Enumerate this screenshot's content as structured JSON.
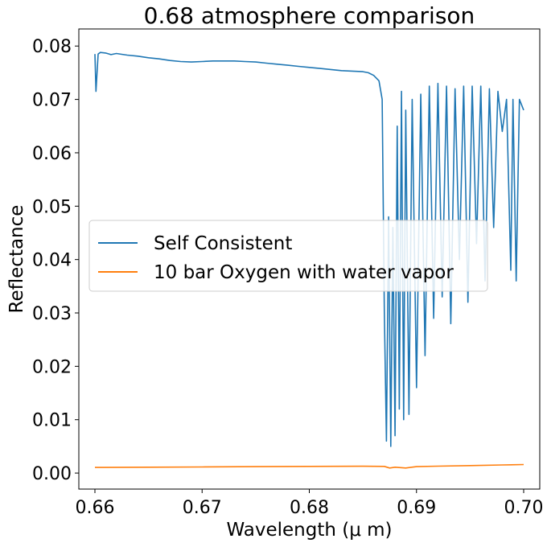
{
  "chart_data": {
    "type": "line",
    "title": "0.68 atmosphere comparison",
    "xlabel": "Wavelength (μ m)",
    "ylabel": "Reflectance",
    "xlim": [
      0.6585,
      0.7015
    ],
    "ylim": [
      -0.003,
      0.0832
    ],
    "xticks": [
      0.66,
      0.67,
      0.68,
      0.69,
      0.7
    ],
    "xtick_labels": [
      "0.66",
      "0.67",
      "0.68",
      "0.69",
      "0.70"
    ],
    "yticks": [
      0.0,
      0.01,
      0.02,
      0.03,
      0.04,
      0.05,
      0.06,
      0.07,
      0.08
    ],
    "ytick_labels": [
      "0.00",
      "0.01",
      "0.02",
      "0.03",
      "0.04",
      "0.05",
      "0.06",
      "0.07",
      "0.08"
    ],
    "grid": false,
    "legend_position": "center-left",
    "series": [
      {
        "name": "Self Consistent",
        "color": "#1f77b4",
        "x": [
          0.66,
          0.6601,
          0.6603,
          0.6605,
          0.661,
          0.6615,
          0.662,
          0.663,
          0.664,
          0.665,
          0.666,
          0.667,
          0.668,
          0.669,
          0.67,
          0.671,
          0.672,
          0.673,
          0.674,
          0.675,
          0.676,
          0.677,
          0.678,
          0.679,
          0.68,
          0.681,
          0.682,
          0.683,
          0.684,
          0.685,
          0.6855,
          0.686,
          0.6865,
          0.6868,
          0.687,
          0.6872,
          0.6874,
          0.6876,
          0.6878,
          0.688,
          0.6882,
          0.6884,
          0.6886,
          0.6888,
          0.689,
          0.6893,
          0.6896,
          0.69,
          0.6904,
          0.6908,
          0.6912,
          0.6916,
          0.692,
          0.6924,
          0.6928,
          0.6932,
          0.6936,
          0.694,
          0.6944,
          0.6948,
          0.6952,
          0.6956,
          0.696,
          0.6964,
          0.6968,
          0.6972,
          0.6976,
          0.698,
          0.6984,
          0.6988,
          0.699,
          0.6993,
          0.6996,
          0.7
        ],
        "y": [
          0.0785,
          0.0715,
          0.0785,
          0.0788,
          0.0787,
          0.0784,
          0.0786,
          0.0783,
          0.0781,
          0.0778,
          0.0776,
          0.0773,
          0.0771,
          0.077,
          0.0771,
          0.0772,
          0.0772,
          0.0772,
          0.0771,
          0.077,
          0.0768,
          0.0766,
          0.0764,
          0.0762,
          0.076,
          0.0758,
          0.0756,
          0.0754,
          0.0753,
          0.0752,
          0.075,
          0.0745,
          0.0735,
          0.07,
          0.03,
          0.006,
          0.048,
          0.005,
          0.046,
          0.007,
          0.065,
          0.012,
          0.0715,
          0.01,
          0.068,
          0.011,
          0.07,
          0.016,
          0.071,
          0.022,
          0.0725,
          0.029,
          0.073,
          0.033,
          0.0725,
          0.028,
          0.072,
          0.04,
          0.0725,
          0.032,
          0.0725,
          0.043,
          0.0725,
          0.036,
          0.072,
          0.046,
          0.0715,
          0.064,
          0.07,
          0.038,
          0.07,
          0.036,
          0.07,
          0.068
        ]
      },
      {
        "name": "10 bar Oxygen with water vapor",
        "color": "#ff7f0e",
        "x": [
          0.66,
          0.665,
          0.67,
          0.675,
          0.68,
          0.685,
          0.687,
          0.6875,
          0.688,
          0.689,
          0.69,
          0.692,
          0.695,
          0.698,
          0.7
        ],
        "y": [
          0.00105,
          0.0011,
          0.00115,
          0.0012,
          0.00125,
          0.00128,
          0.00125,
          0.00095,
          0.0011,
          0.00095,
          0.0012,
          0.0013,
          0.0014,
          0.00152,
          0.0016
        ]
      }
    ]
  }
}
